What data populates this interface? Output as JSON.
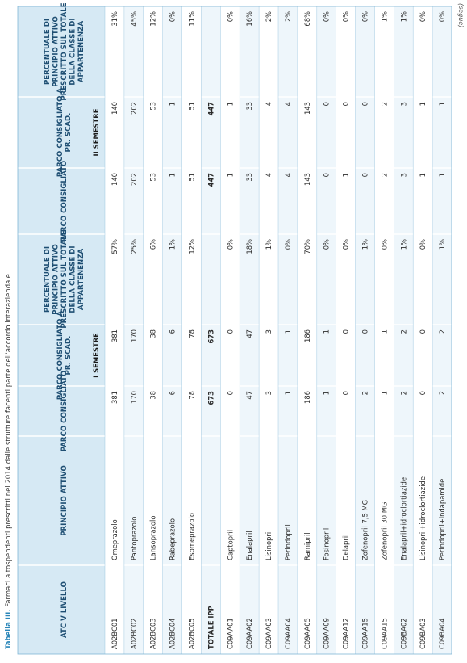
{
  "caption": {
    "label": "Tabella III.",
    "text": " Farmaci altospendenti prescritti nel 2014 dalle strutture facenti parte dell'accordo interaziendale"
  },
  "segue": "(segue)",
  "headers": {
    "atc": "ATC V LIVELLO",
    "principio": "PRINCIPIO ATTIVO",
    "col1": "PARCO CONSIGLIATO",
    "col2": "PARCO CONSIGLIATO A PR. SCAD.",
    "col3": "PERCENTUALE DI PRINCIPIO ATTIVO PRESCRITTO SUL TOTALE DELLA CLASSE DI APPARTENENZA",
    "col4": "PARCO CONSIGLIATO",
    "col5": "PARCO CONSIGLIATO A PR. SCAD.",
    "col6": "PERCENTUALE DI PRINCIPIO ATTIVO PRESCRITTO SUL TOTALE DELLA CLASSE DI APPARTENENZA",
    "sem1": "I SEMESTRE",
    "sem2": "II SEMESTRE"
  },
  "rows": [
    {
      "atc": "A02BC01",
      "principio": "Omeprazolo",
      "c1": "381",
      "c2": "381",
      "c3": "57%",
      "c4": "140",
      "c5": "140",
      "c6": "31%"
    },
    {
      "atc": "A02BC02",
      "principio": "Pantoprazolo",
      "c1": "170",
      "c2": "170",
      "c3": "25%",
      "c4": "202",
      "c5": "202",
      "c6": "45%"
    },
    {
      "atc": "A02BC03",
      "principio": "Lansoprazolo",
      "c1": "38",
      "c2": "38",
      "c3": "6%",
      "c4": "53",
      "c5": "53",
      "c6": "12%"
    },
    {
      "atc": "A02BC04",
      "principio": "Rabeprazolo",
      "c1": "6",
      "c2": "6",
      "c3": "1%",
      "c4": "1",
      "c5": "1",
      "c6": "0%"
    },
    {
      "atc": "A02BC05",
      "principio": "Esomeprazolo",
      "c1": "78",
      "c2": "78",
      "c3": "12%",
      "c4": "51",
      "c5": "51",
      "c6": "11%"
    },
    {
      "atc": "TOTALE IPP",
      "principio": "",
      "c1": "673",
      "c2": "673",
      "c3": "",
      "c4": "447",
      "c5": "447",
      "c6": "",
      "total": true
    },
    {
      "atc": "C09AA01",
      "principio": "Captopril",
      "c1": "0",
      "c2": "0",
      "c3": "0%",
      "c4": "1",
      "c5": "1",
      "c6": "0%"
    },
    {
      "atc": "C09AA02",
      "principio": "Enalapril",
      "c1": "47",
      "c2": "47",
      "c3": "18%",
      "c4": "33",
      "c5": "33",
      "c6": "16%"
    },
    {
      "atc": "C09AA03",
      "principio": "Lisinopril",
      "c1": "3",
      "c2": "3",
      "c3": "1%",
      "c4": "4",
      "c5": "4",
      "c6": "2%"
    },
    {
      "atc": "C09AA04",
      "principio": "Perindopril",
      "c1": "1",
      "c2": "1",
      "c3": "0%",
      "c4": "4",
      "c5": "4",
      "c6": "2%"
    },
    {
      "atc": "C09AA05",
      "principio": "Ramipril",
      "c1": "186",
      "c2": "186",
      "c3": "70%",
      "c4": "143",
      "c5": "143",
      "c6": "68%"
    },
    {
      "atc": "C09AA09",
      "principio": "Fosinopril",
      "c1": "1",
      "c2": "1",
      "c3": "0%",
      "c4": "0",
      "c5": "0",
      "c6": "0%"
    },
    {
      "atc": "C09AA12",
      "principio": "Delapril",
      "c1": "0",
      "c2": "0",
      "c3": "0%",
      "c4": "1",
      "c5": "0",
      "c6": "0%"
    },
    {
      "atc": "C09AA15",
      "principio": "Zofenopril 7,5 MG",
      "c1": "2",
      "c2": "0",
      "c3": "1%",
      "c4": "0",
      "c5": "0",
      "c6": "0%"
    },
    {
      "atc": "C09AA15",
      "principio": "Zofenopril 30 MG",
      "c1": "1",
      "c2": "1",
      "c3": "0%",
      "c4": "2",
      "c5": "2",
      "c6": "1%"
    },
    {
      "atc": "C09BA02",
      "principio": "Enalapril+idroclortiazide",
      "c1": "2",
      "c2": "2",
      "c3": "1%",
      "c4": "3",
      "c5": "3",
      "c6": "1%"
    },
    {
      "atc": "C09BA03",
      "principio": "Lisinopril+idroclortiazide",
      "c1": "0",
      "c2": "0",
      "c3": "0%",
      "c4": "1",
      "c5": "1",
      "c6": "0%"
    },
    {
      "atc": "C09BA04",
      "principio": "Perindopril+indapamide",
      "c1": "2",
      "c2": "2",
      "c3": "1%",
      "c4": "1",
      "c5": "1",
      "c6": "0%"
    }
  ],
  "colors": {
    "header_bg": "#d6e9f4",
    "row_alt": "#eef6fb",
    "header_text": "#1f4f73",
    "caption_accent": "#2a86b9",
    "rule": "#7fb6d6"
  }
}
